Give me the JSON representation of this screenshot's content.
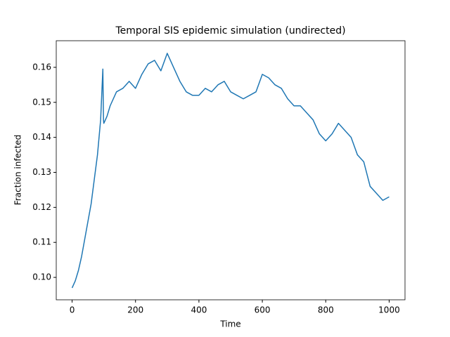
{
  "chart_data": {
    "type": "line",
    "title": "Temporal SIS epidemic simulation (undirected)",
    "xlabel": "Time",
    "ylabel": "Fraction infected",
    "color": "#1f77b4",
    "x": [
      0,
      10,
      20,
      30,
      40,
      50,
      60,
      70,
      80,
      90,
      97,
      99,
      100,
      110,
      120,
      140,
      160,
      180,
      200,
      220,
      240,
      260,
      280,
      300,
      320,
      340,
      360,
      380,
      400,
      420,
      440,
      460,
      480,
      500,
      520,
      540,
      560,
      580,
      600,
      620,
      640,
      660,
      680,
      700,
      720,
      740,
      760,
      780,
      800,
      820,
      840,
      860,
      880,
      900,
      920,
      940,
      960,
      980,
      1000
    ],
    "values": [
      0.097,
      0.099,
      0.102,
      0.106,
      0.111,
      0.116,
      0.121,
      0.128,
      0.135,
      0.145,
      0.1595,
      0.145,
      0.144,
      0.146,
      0.149,
      0.153,
      0.154,
      0.156,
      0.154,
      0.158,
      0.161,
      0.162,
      0.159,
      0.164,
      0.16,
      0.156,
      0.153,
      0.152,
      0.152,
      0.154,
      0.153,
      0.155,
      0.156,
      0.153,
      0.152,
      0.151,
      0.152,
      0.153,
      0.158,
      0.157,
      0.155,
      0.154,
      0.151,
      0.149,
      0.149,
      0.147,
      0.145,
      0.141,
      0.139,
      0.141,
      0.144,
      0.142,
      0.14,
      0.135,
      0.133,
      0.126,
      0.124,
      0.122,
      0.123
    ],
    "xlim": [
      -50,
      1050
    ],
    "ylim": [
      0.0936,
      0.1676
    ],
    "xticks": [
      0,
      200,
      400,
      600,
      800,
      1000
    ],
    "yticks": [
      {
        "value": 0.1,
        "label": "0.10"
      },
      0.11,
      0.12,
      0.13,
      0.14,
      0.15,
      0.16
    ]
  }
}
